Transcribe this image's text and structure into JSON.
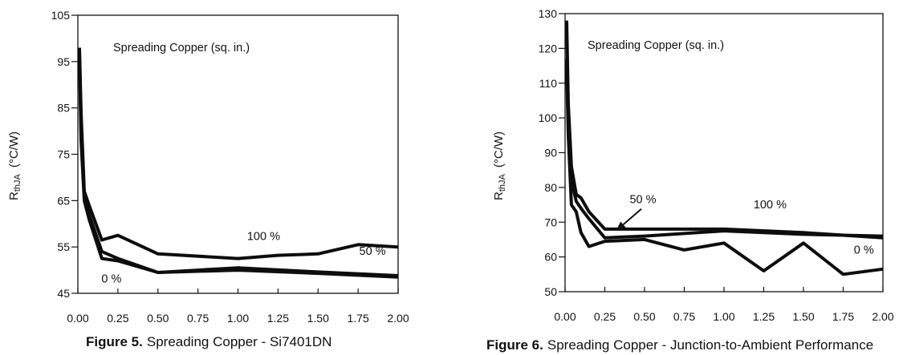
{
  "chart_data": [
    {
      "type": "line",
      "caption_label": "Figure 5.",
      "caption_text": "Spreading Copper - Si7401DN",
      "title": "Spreading Copper (sq. in.)",
      "ylabel_main": "R",
      "ylabel_sub": "thJA",
      "ylabel_unit": "(°C/W)",
      "xlabel": "",
      "xlim": [
        0,
        2.0
      ],
      "ylim": [
        45,
        105
      ],
      "x_ticks": [
        "0.00",
        "0.25",
        "0.50",
        "0.75",
        "1.00",
        "1.25",
        "1.50",
        "1.75",
        "2.00"
      ],
      "y_ticks": [
        "45",
        "55",
        "65",
        "75",
        "85",
        "95",
        "105"
      ],
      "series": [
        {
          "name": "100 %",
          "x": [
            0.01,
            0.02,
            0.04,
            0.07,
            0.15,
            0.25,
            0.5,
            1.0,
            1.25,
            1.5,
            1.75,
            2.0
          ],
          "y": [
            98,
            84,
            67,
            64,
            56.5,
            57.5,
            53.5,
            52.5,
            53.2,
            53.5,
            55.5,
            55
          ]
        },
        {
          "name": "50 %",
          "x": [
            0.01,
            0.02,
            0.04,
            0.07,
            0.15,
            0.25,
            0.5,
            1.0,
            1.5,
            2.0
          ],
          "y": [
            97,
            80,
            66,
            62,
            54,
            52.5,
            49.5,
            50.5,
            49.6,
            48.8
          ]
        },
        {
          "name": "0 %",
          "x": [
            0.01,
            0.02,
            0.04,
            0.07,
            0.15,
            0.25,
            0.5,
            1.0,
            1.5,
            2.0
          ],
          "y": [
            96,
            78,
            65,
            61,
            52.5,
            52,
            49.5,
            50,
            49.3,
            48.5
          ]
        }
      ],
      "annotations": [
        {
          "text": "100 %",
          "x": 1.16,
          "y": 56.5
        },
        {
          "text": "50 %",
          "x": 1.84,
          "y": 53.3
        },
        {
          "text": "0 %",
          "x": 0.21,
          "y": 47.3
        }
      ]
    },
    {
      "type": "line",
      "caption_label": "Figure 6.",
      "caption_text": "Spreading Copper - Junction-to-Ambient Performance",
      "title": "Spreading Copper (sq. in.)",
      "ylabel_main": "R",
      "ylabel_sub": "thJA",
      "ylabel_unit": "(°C/W)",
      "xlabel": "",
      "xlim": [
        0,
        2.0
      ],
      "ylim": [
        50,
        130
      ],
      "x_ticks": [
        "0.00",
        "0.25",
        "0.50",
        "0.75",
        "1.00",
        "1.25",
        "1.50",
        "1.75",
        "2.00"
      ],
      "y_ticks": [
        "50",
        "60",
        "70",
        "80",
        "90",
        "100",
        "110",
        "120",
        "130"
      ],
      "series": [
        {
          "name": "100 %",
          "x": [
            0.01,
            0.02,
            0.04,
            0.07,
            0.1,
            0.15,
            0.25,
            0.5,
            1.0,
            1.5,
            2.0
          ],
          "y": [
            128,
            104,
            86,
            78,
            77,
            73,
            68,
            68,
            68,
            67,
            65.5
          ]
        },
        {
          "name": "50 %",
          "x": [
            0.01,
            0.02,
            0.04,
            0.07,
            0.1,
            0.15,
            0.25,
            0.5,
            1.0,
            1.5,
            2.0
          ],
          "y": [
            117,
            100,
            82,
            76,
            74,
            71,
            65.5,
            66,
            67.5,
            66.5,
            66
          ]
        },
        {
          "name": "0 %",
          "x": [
            0.01,
            0.02,
            0.04,
            0.07,
            0.1,
            0.15,
            0.25,
            0.5,
            0.75,
            1.0,
            1.25,
            1.5,
            1.75,
            2.0
          ],
          "y": [
            115,
            95,
            75,
            73,
            67,
            63,
            64.5,
            65,
            62,
            64,
            56,
            64,
            55,
            56.5
          ]
        }
      ],
      "annotations": [
        {
          "text": "50 %",
          "x": 0.49,
          "y": 75.5
        },
        {
          "text": "100 %",
          "x": 1.29,
          "y": 74
        },
        {
          "text": "0 %",
          "x": 1.88,
          "y": 61
        }
      ],
      "arrow": {
        "from": [
          0.48,
          73.8
        ],
        "to": [
          0.32,
          67.5
        ]
      }
    }
  ]
}
